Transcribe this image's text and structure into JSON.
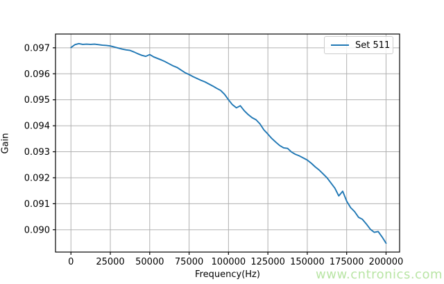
{
  "figure": {
    "xlabel": "Frequency(Hz)",
    "ylabel": "Gain",
    "legend": {
      "label": "Set 511"
    },
    "watermark": {
      "text": "www.cntronics.com",
      "color": "#b9e5a5"
    },
    "colors": {
      "line": "#1f77b4",
      "grid": "#b0b0b0",
      "spine": "#000000",
      "text": "#000000"
    }
  },
  "chart_data": {
    "type": "line",
    "title": "",
    "xlabel": "Frequency(Hz)",
    "ylabel": "Gain",
    "grid": true,
    "legend_position": "upper right",
    "xlim": [
      -9800,
      208600
    ],
    "ylim": [
      0.08914,
      0.09753
    ],
    "xticks": {
      "values": [
        0,
        25000,
        50000,
        75000,
        100000,
        125000,
        150000,
        175000,
        200000
      ],
      "labels": [
        "0",
        "25000",
        "50000",
        "75000",
        "100000",
        "125000",
        "150000",
        "175000",
        "200000"
      ]
    },
    "yticks": {
      "values": [
        0.09,
        0.091,
        0.092,
        0.093,
        0.094,
        0.095,
        0.096,
        0.097
      ],
      "labels": [
        "0.090",
        "0.091",
        "0.092",
        "0.093",
        "0.094",
        "0.095",
        "0.096",
        "0.097"
      ]
    },
    "series": [
      {
        "name": "Set 511",
        "color": "#1f77b4",
        "x": [
          0,
          2500,
          5000,
          7500,
          10000,
          12500,
          15000,
          17500,
          20000,
          22500,
          25000,
          27500,
          30000,
          32500,
          35000,
          37500,
          40000,
          42500,
          45000,
          47500,
          50000,
          52500,
          55000,
          57500,
          60000,
          62500,
          65000,
          67500,
          70000,
          72500,
          75000,
          77500,
          80000,
          82500,
          85000,
          87500,
          90000,
          92500,
          95000,
          97500,
          100000,
          102500,
          105000,
          107500,
          110000,
          112500,
          115000,
          117500,
          120000,
          122500,
          125000,
          127500,
          130000,
          132500,
          135000,
          137500,
          140000,
          142500,
          145000,
          147500,
          150000,
          152500,
          155000,
          157500,
          160000,
          162500,
          165000,
          167500,
          170000,
          172500,
          175000,
          177500,
          180000,
          182500,
          185000,
          187500,
          190000,
          192500,
          195000,
          197500,
          200000
        ],
        "y": [
          0.09701,
          0.09712,
          0.09716,
          0.09713,
          0.09714,
          0.09713,
          0.09714,
          0.09712,
          0.0971,
          0.09709,
          0.09707,
          0.09703,
          0.09699,
          0.09695,
          0.09692,
          0.0969,
          0.09684,
          0.09677,
          0.09671,
          0.09667,
          0.09674,
          0.09665,
          0.09659,
          0.09653,
          0.09646,
          0.09638,
          0.0963,
          0.09624,
          0.09614,
          0.09604,
          0.09597,
          0.09589,
          0.09582,
          0.09575,
          0.09569,
          0.09561,
          0.09553,
          0.09544,
          0.09536,
          0.09521,
          0.095,
          0.09481,
          0.09469,
          0.09477,
          0.09458,
          0.09443,
          0.09431,
          0.09423,
          0.09407,
          0.09384,
          0.09368,
          0.09351,
          0.09337,
          0.09324,
          0.09315,
          0.09313,
          0.09299,
          0.0929,
          0.09284,
          0.09276,
          0.09268,
          0.09256,
          0.09242,
          0.0923,
          0.09215,
          0.092,
          0.0918,
          0.0916,
          0.0913,
          0.09148,
          0.0911,
          0.09085,
          0.0907,
          0.09048,
          0.0904,
          0.09022,
          0.09002,
          0.0899,
          0.08993,
          0.08972,
          0.08948
        ]
      }
    ]
  }
}
